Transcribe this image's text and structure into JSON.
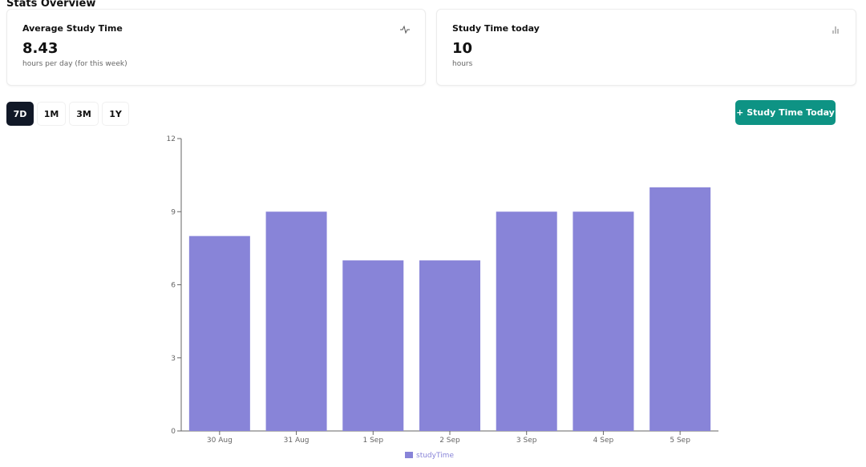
{
  "page_title": "Stats Overview",
  "cards": [
    {
      "title": "Average Study Time",
      "value": "8.43",
      "subtitle": "hours per day (for this week)",
      "icon": "activity-icon"
    },
    {
      "title": "Study Time today",
      "value": "10",
      "subtitle": "hours",
      "icon": "bar-chart-icon"
    }
  ],
  "ranges": [
    {
      "label": "7D",
      "active": true
    },
    {
      "label": "1M",
      "active": false
    },
    {
      "label": "3M",
      "active": false
    },
    {
      "label": "1Y",
      "active": false
    }
  ],
  "add_button_label": "+ Study Time Today",
  "colors": {
    "bar": "#8884d8",
    "accent": "#0e9384",
    "active_range": "#111827"
  },
  "chart_data": {
    "type": "bar",
    "categories": [
      "30 Aug",
      "31 Aug",
      "1 Sep",
      "2 Sep",
      "3 Sep",
      "4 Sep",
      "5 Sep"
    ],
    "series": [
      {
        "name": "studyTime",
        "values": [
          8,
          9,
          7,
          7,
          9,
          9,
          10
        ]
      }
    ],
    "ylim": [
      0,
      12
    ],
    "yticks": [
      0,
      3,
      6,
      9,
      12
    ],
    "grid": false,
    "legend": "bottom"
  }
}
